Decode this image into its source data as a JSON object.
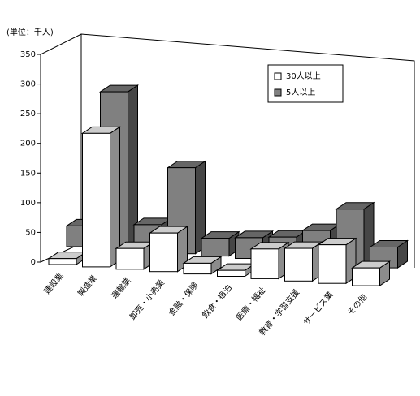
{
  "chart_data": {
    "type": "bar3d",
    "y_label": "(単位：千人)",
    "categories": [
      "建設業",
      "製造業",
      "運輸業",
      "卸売・小売業",
      "金融・保険",
      "飲食・宿泊",
      "医療・福祉",
      "教育・学習支援",
      "サービス業",
      "その他"
    ],
    "series": [
      {
        "name": "30人以上",
        "color": "#ffffff",
        "values": [
          10,
          225,
          35,
          65,
          18,
          10,
          50,
          55,
          65,
          30
        ]
      },
      {
        "name": "5人以上",
        "color": "#808080",
        "values": [
          35,
          265,
          45,
          145,
          30,
          35,
          40,
          55,
          95,
          35
        ]
      }
    ],
    "ylim": [
      0,
      350
    ],
    "yticks": [
      0,
      50,
      100,
      150,
      200,
      250,
      300,
      350
    ]
  }
}
